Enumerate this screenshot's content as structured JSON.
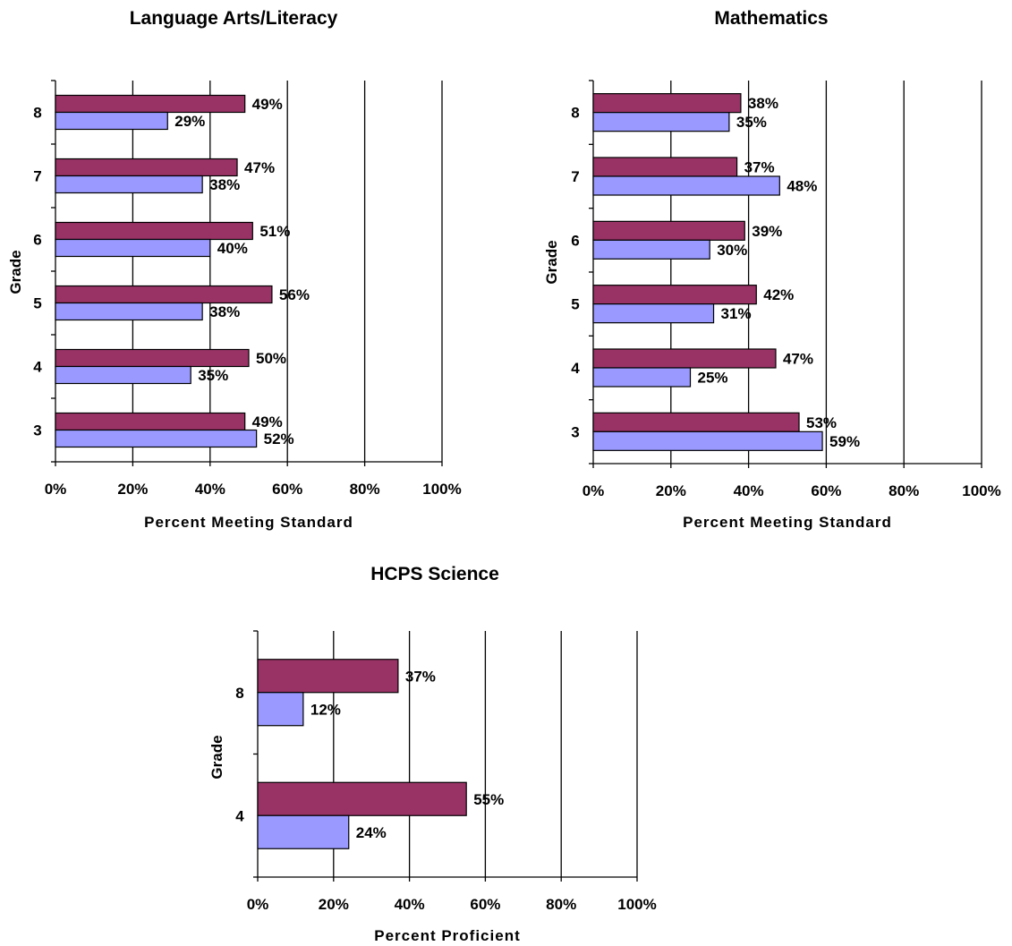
{
  "chart_data": [
    {
      "type": "bar",
      "orientation": "horizontal",
      "title": "Language Arts/Literacy",
      "xlabel": "Percent Meeting Standard",
      "ylabel": "Grade",
      "xlim": [
        0,
        100
      ],
      "xticks": [
        "0%",
        "20%",
        "40%",
        "60%",
        "80%",
        "100%"
      ],
      "categories": [
        "3",
        "4",
        "5",
        "6",
        "7",
        "8"
      ],
      "series": [
        {
          "color": "#993366",
          "values": [
            49,
            50,
            56,
            51,
            47,
            49
          ],
          "labels": [
            "49%",
            "50%",
            "56%",
            "51%",
            "47%",
            "49%"
          ]
        },
        {
          "color": "#9999FF",
          "values": [
            52,
            35,
            38,
            40,
            38,
            29
          ],
          "labels": [
            "52%",
            "35%",
            "38%",
            "40%",
            "38%",
            "29%"
          ]
        }
      ],
      "grid": "vertical"
    },
    {
      "type": "bar",
      "orientation": "horizontal",
      "title": "Mathematics",
      "xlabel": "Percent Meeting Standard",
      "ylabel": "Grade",
      "xlim": [
        0,
        100
      ],
      "xticks": [
        "0%",
        "20%",
        "40%",
        "60%",
        "80%",
        "100%"
      ],
      "categories": [
        "3",
        "4",
        "5",
        "6",
        "7",
        "8"
      ],
      "series": [
        {
          "color": "#993366",
          "values": [
            53,
            47,
            42,
            39,
            37,
            38
          ],
          "labels": [
            "53%",
            "47%",
            "42%",
            "39%",
            "37%",
            "38%"
          ]
        },
        {
          "color": "#9999FF",
          "values": [
            59,
            25,
            31,
            30,
            48,
            35
          ],
          "labels": [
            "59%",
            "25%",
            "31%",
            "30%",
            "48%",
            "35%"
          ]
        }
      ],
      "grid": "vertical"
    },
    {
      "type": "bar",
      "orientation": "horizontal",
      "title": "HCPS Science",
      "xlabel": "Percent Proficient",
      "ylabel": "Grade",
      "xlim": [
        0,
        100
      ],
      "xticks": [
        "0%",
        "20%",
        "40%",
        "60%",
        "80%",
        "100%"
      ],
      "categories": [
        "4",
        "8"
      ],
      "series": [
        {
          "color": "#993366",
          "values": [
            55,
            37
          ],
          "labels": [
            "55%",
            "37%"
          ]
        },
        {
          "color": "#9999FF",
          "values": [
            24,
            12
          ],
          "labels": [
            "24%",
            "12%"
          ]
        }
      ],
      "grid": "vertical"
    }
  ]
}
